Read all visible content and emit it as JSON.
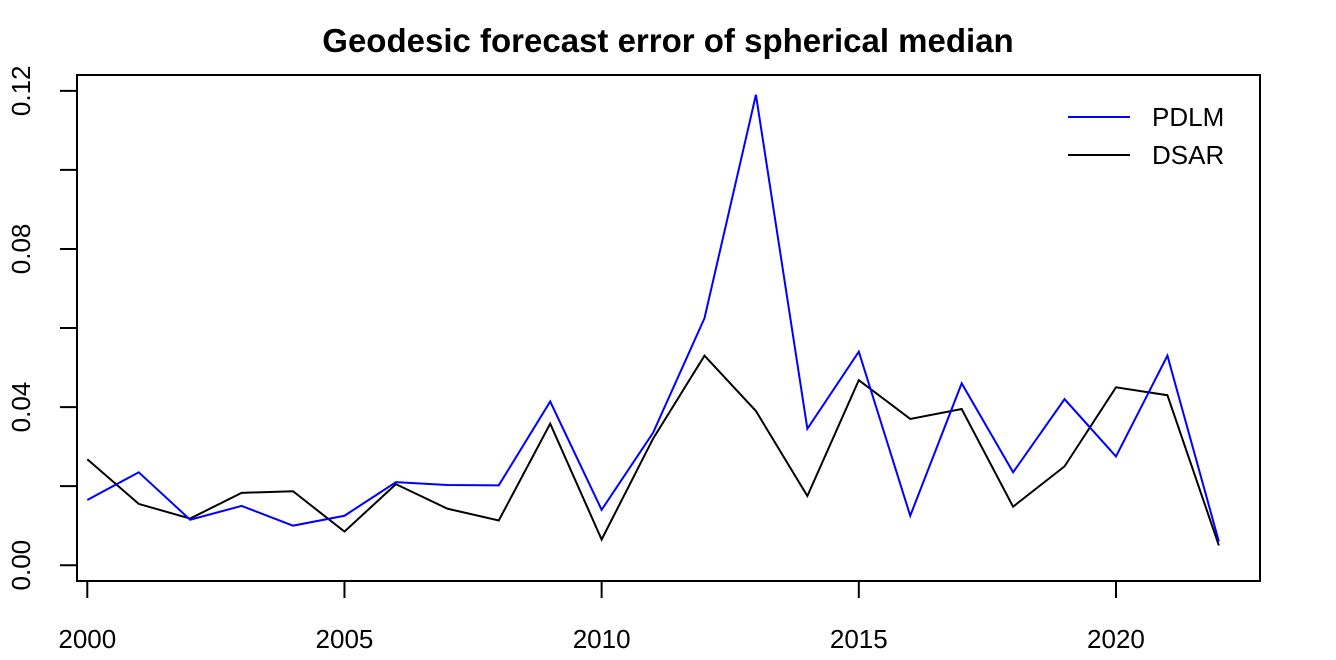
{
  "chart_data": {
    "type": "line",
    "title": "Geodesic forecast error of spherical median",
    "xlabel": "",
    "ylabel": "",
    "x": [
      2000,
      2001,
      2002,
      2003,
      2004,
      2005,
      2006,
      2007,
      2008,
      2009,
      2010,
      2011,
      2012,
      2013,
      2014,
      2015,
      2016,
      2017,
      2018,
      2019,
      2020,
      2021,
      2022
    ],
    "xlim": [
      1999.8,
      2022.8
    ],
    "ylim": [
      -0.004,
      0.124
    ],
    "xticks": [
      2000,
      2005,
      2010,
      2015,
      2020
    ],
    "yticks": [
      0.0,
      0.04,
      0.08,
      0.12
    ],
    "xtick_labels": [
      "2000",
      "2005",
      "2010",
      "2015",
      "2020"
    ],
    "ytick_labels": [
      "0.00",
      "0.04",
      "0.08",
      "0.12"
    ],
    "ytick_minor": [
      0.02,
      0.06,
      0.1
    ],
    "grid": false,
    "legend_position": "top-right",
    "series": [
      {
        "name": "PDLM",
        "color": "#0000ff",
        "values": [
          0.0165,
          0.0235,
          0.0115,
          0.015,
          0.01,
          0.0125,
          0.021,
          0.0203,
          0.0202,
          0.0414,
          0.014,
          0.0335,
          0.0625,
          0.119,
          0.0345,
          0.054,
          0.0125,
          0.046,
          0.0235,
          0.042,
          0.0275,
          0.053,
          0.006
        ]
      },
      {
        "name": "DSAR",
        "color": "#000000",
        "values": [
          0.0268,
          0.0155,
          0.0118,
          0.0183,
          0.0187,
          0.0085,
          0.0205,
          0.0143,
          0.0113,
          0.0358,
          0.0065,
          0.032,
          0.053,
          0.039,
          0.0175,
          0.0468,
          0.037,
          0.0395,
          0.0148,
          0.025,
          0.045,
          0.043,
          0.005
        ]
      }
    ]
  }
}
